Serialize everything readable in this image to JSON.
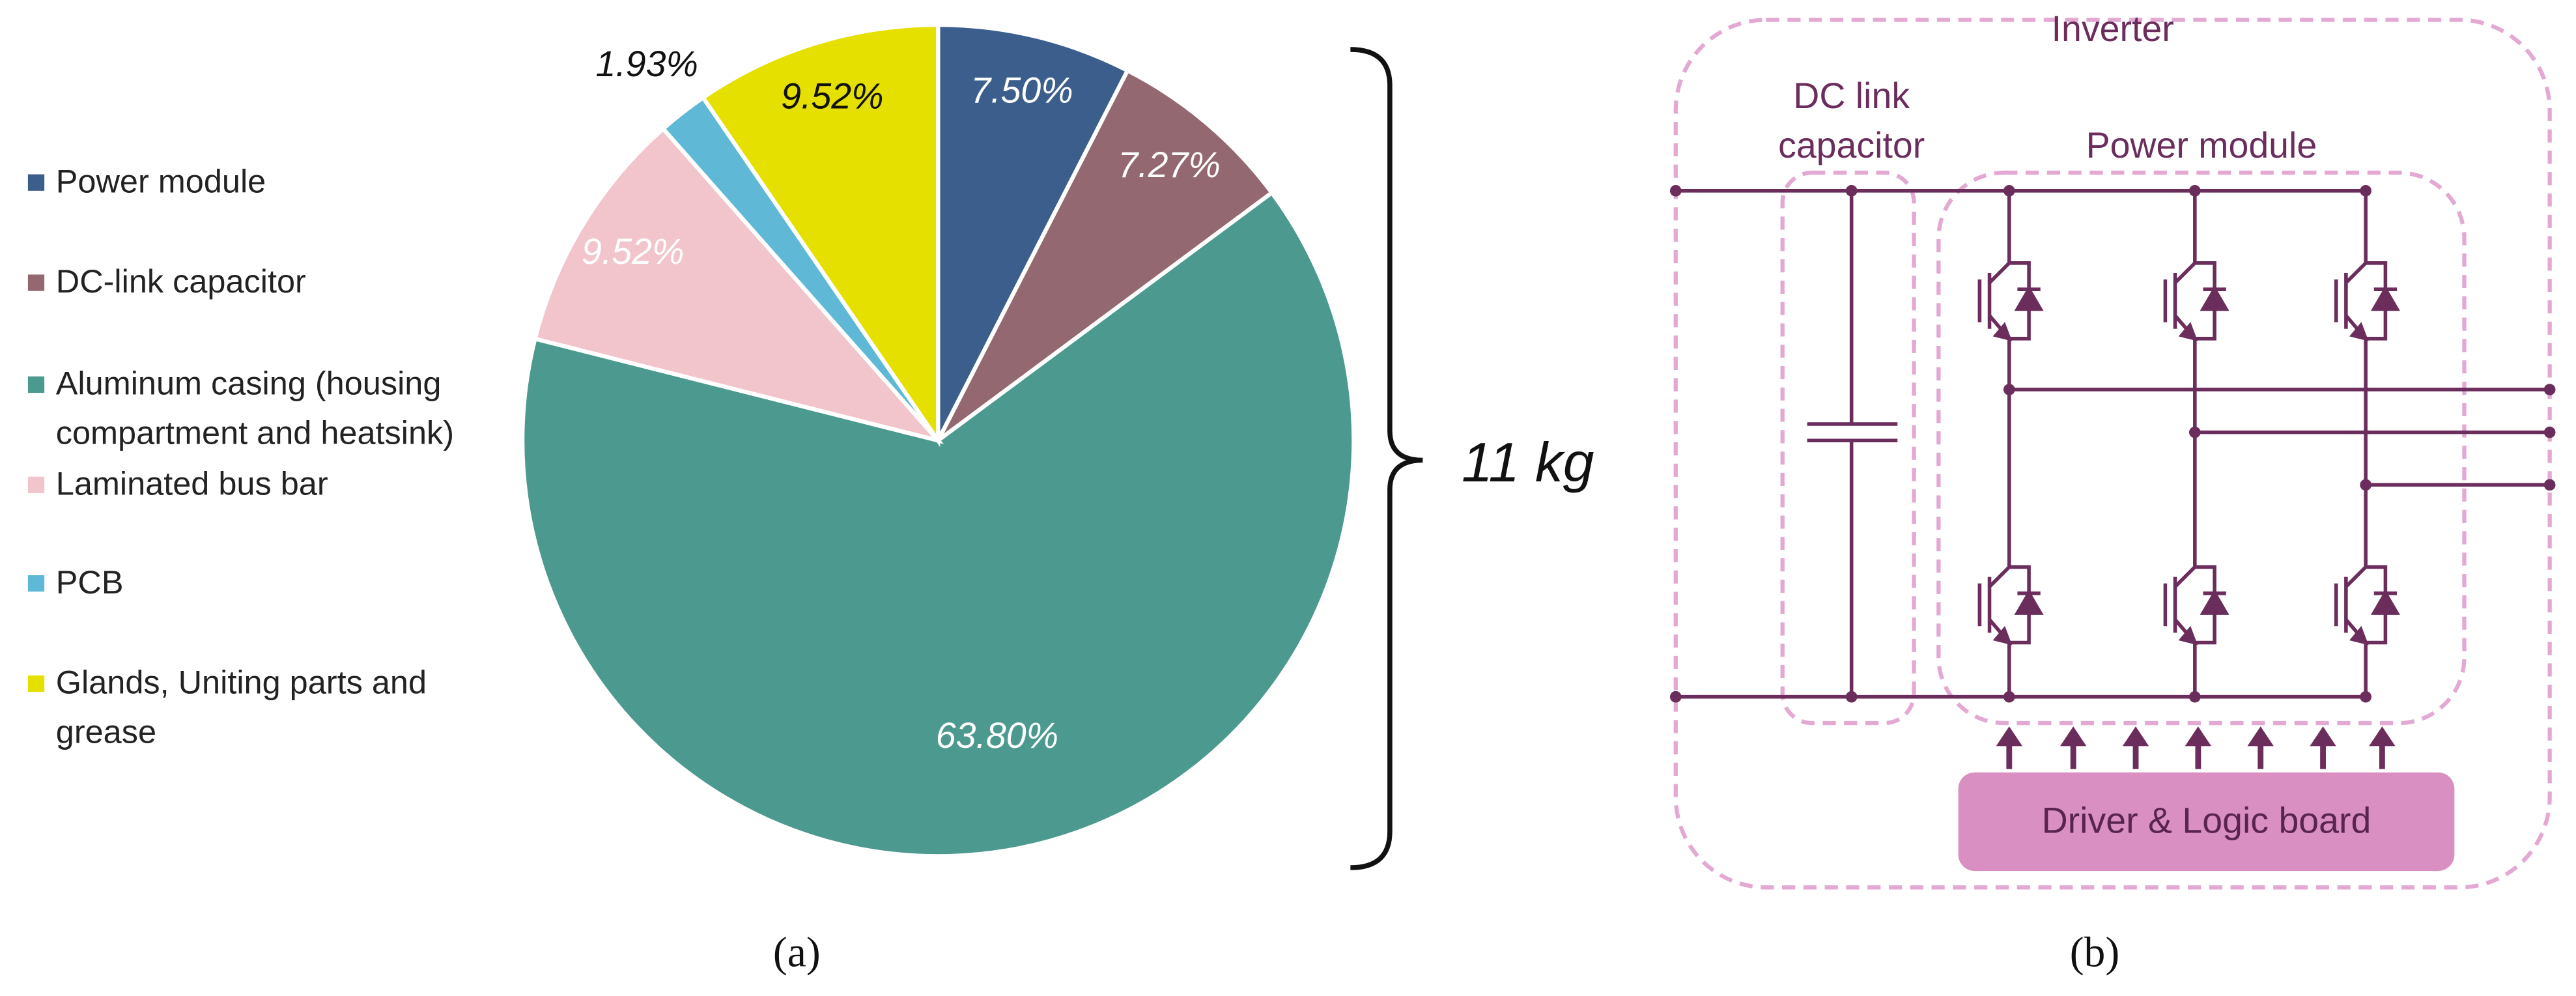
{
  "chart_data": {
    "type": "pie",
    "categories": [
      "Power module",
      "DC-link capacitor",
      "Aluminum casing (housing compartment and heatsink)",
      "Laminated bus bar",
      "PCB",
      "Glands, Uniting parts and grease"
    ],
    "values": [
      7.5,
      7.27,
      63.8,
      9.52,
      1.93,
      9.52
    ],
    "value_labels": [
      "7.50%",
      "7.27%",
      "63.80%",
      "9.52%",
      "1.93%",
      "9.52%"
    ],
    "colors": [
      "#3b5e8c",
      "#936870",
      "#4c998f",
      "#f2c4cc",
      "#5eb8d6",
      "#e6e000"
    ],
    "label_colors": [
      "#ffffff",
      "#ffffff",
      "#ffffff",
      "#ffffff",
      "#111111",
      "#111111"
    ],
    "annotation": "11 kg",
    "panel_label": "(a)"
  },
  "diagram": {
    "title": "Inverter",
    "dc_link_label": [
      "DC link",
      "capacitor"
    ],
    "power_module_label": "Power module",
    "board_label": "Driver & Logic board",
    "panel_label": "(b)"
  }
}
